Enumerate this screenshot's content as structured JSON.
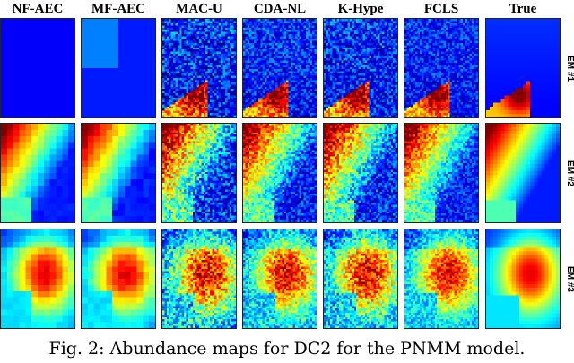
{
  "figure": {
    "columns": [
      "NF-AEC",
      "MF-AEC",
      "MAC-U",
      "CDA-NL",
      "K-Hype",
      "FCLS",
      "True"
    ],
    "rows": [
      "EM #1",
      "EM #2",
      "EM #3"
    ],
    "colormap": [
      "#00008f",
      "#0000ff",
      "#0080ff",
      "#00ffff",
      "#80ff80",
      "#ffff00",
      "#ff8000",
      "#ff0000",
      "#800000"
    ],
    "caption": "Fig. 2: Abundance maps for DC2 for the PNMM model."
  }
}
